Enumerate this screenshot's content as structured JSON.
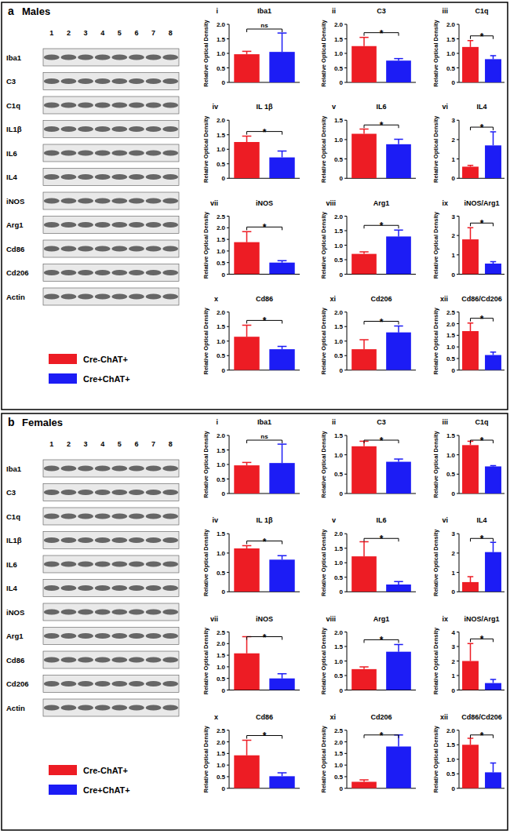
{
  "figure": {
    "panels": [
      {
        "letter": "a",
        "title": "Males",
        "lanes": [
          1,
          2,
          3,
          4,
          5,
          6,
          7,
          8
        ],
        "blot_rows": [
          "Iba1",
          "C3",
          "C1q",
          "IL1β",
          "IL6",
          "IL4",
          "iNOS",
          "Arg1",
          "Cd86",
          "Cd206",
          "Actin"
        ],
        "legend": [
          {
            "name": "Cre-ChAT+",
            "color": "#ed1c24"
          },
          {
            "name": "Cre+ChAT+",
            "color": "#1c1cf5"
          }
        ]
      },
      {
        "letter": "b",
        "title": "Females",
        "lanes": [
          1,
          2,
          3,
          4,
          5,
          6,
          7,
          8
        ],
        "blot_rows": [
          "Iba1",
          "C3",
          "C1q",
          "IL1β",
          "IL6",
          "IL4",
          "iNOS",
          "Arg1",
          "Cd86",
          "Cd206",
          "Actin"
        ],
        "legend": [
          {
            "name": "Cre-ChAT+",
            "color": "#ed1c24"
          },
          {
            "name": "Cre+ChAT+",
            "color": "#1c1cf5"
          }
        ]
      }
    ]
  },
  "chart_data": [
    {
      "type": "bar",
      "label": "i",
      "title": "Iba1",
      "y_label": "Relative Optical Density",
      "categories": [
        null,
        null
      ],
      "values": [
        0.97,
        1.05
      ],
      "errors": [
        0.1,
        0.65
      ],
      "colors": [
        "#ed1c24",
        "#1c1cf5"
      ],
      "ylim": [
        0,
        2
      ],
      "yticks": [
        0,
        0.5,
        {
          "value": 1,
          "label": "1.0"
        },
        1.5,
        {
          "value": 2,
          "label": "2.0"
        }
      ],
      "annotation": "ns"
    },
    {
      "type": "bar",
      "label": "ii",
      "title": "C3",
      "y_label": "Relative Optical Density",
      "categories": [
        null,
        null
      ],
      "values": [
        1.25,
        0.75
      ],
      "errors": [
        0.3,
        0.07
      ],
      "colors": [
        "#ed1c24",
        "#1c1cf5"
      ],
      "ylim": [
        0,
        2
      ],
      "yticks": [
        0,
        0.5,
        {
          "value": 1,
          "label": "1.0"
        },
        1.5,
        {
          "value": 2,
          "label": "2.0"
        }
      ],
      "annotation": "*"
    },
    {
      "type": "bar",
      "label": "iii",
      "title": "C1q",
      "y_label": "Relative Optical Density",
      "categories": [
        null,
        null
      ],
      "values": [
        1.22,
        0.8
      ],
      "errors": [
        0.22,
        0.12
      ],
      "colors": [
        "#ed1c24",
        "#1c1cf5"
      ],
      "ylim": [
        0,
        2
      ],
      "yticks": [
        0,
        0.5,
        {
          "value": 1,
          "label": "1.0"
        },
        1.5,
        {
          "value": 2,
          "label": "2.0"
        }
      ],
      "annotation": "*"
    },
    {
      "type": "bar",
      "label": "iv",
      "title": "IL 1β",
      "y_label": "Relative Optical Density",
      "categories": [
        null,
        null
      ],
      "values": [
        1.25,
        0.72
      ],
      "errors": [
        0.2,
        0.22
      ],
      "colors": [
        "#ed1c24",
        "#1c1cf5"
      ],
      "ylim": [
        0,
        2
      ],
      "yticks": [
        0,
        0.5,
        {
          "value": 1,
          "label": "1.0"
        },
        1.5,
        {
          "value": 2,
          "label": "2.0"
        }
      ],
      "annotation": "*"
    },
    {
      "type": "bar",
      "label": "v",
      "title": "IL6",
      "y_label": "Relative Optical Density",
      "categories": [
        null,
        null
      ],
      "values": [
        1.15,
        0.88
      ],
      "errors": [
        0.12,
        0.13
      ],
      "colors": [
        "#ed1c24",
        "#1c1cf5"
      ],
      "ylim": [
        0,
        1.5
      ],
      "yticks": [
        0,
        0.5,
        {
          "value": 1,
          "label": "1.0"
        },
        1.5
      ],
      "annotation": "*"
    },
    {
      "type": "bar",
      "label": "vi",
      "title": "IL4",
      "y_label": "Relative Optical Density",
      "categories": [
        null,
        null
      ],
      "values": [
        0.6,
        1.7
      ],
      "errors": [
        0.07,
        0.7
      ],
      "colors": [
        "#ed1c24",
        "#1c1cf5"
      ],
      "ylim": [
        0,
        3
      ],
      "yticks": [
        0,
        1,
        2,
        3
      ],
      "annotation": "*"
    },
    {
      "type": "bar",
      "label": "vii",
      "title": "iNOS",
      "y_label": "Relative Optical Density",
      "categories": [
        null,
        null
      ],
      "values": [
        1.38,
        0.5
      ],
      "errors": [
        0.45,
        0.08
      ],
      "colors": [
        "#ed1c24",
        "#1c1cf5"
      ],
      "ylim": [
        0,
        2.5
      ],
      "yticks": [
        0,
        0.5,
        {
          "value": 1,
          "label": "1.0"
        },
        1.5,
        {
          "value": 2,
          "label": "2.0"
        },
        2.5
      ],
      "annotation": "*"
    },
    {
      "type": "bar",
      "label": "viii",
      "title": "Arg1",
      "y_label": "Relative Optical Density",
      "categories": [
        null,
        null
      ],
      "values": [
        0.7,
        1.3
      ],
      "errors": [
        0.07,
        0.22
      ],
      "colors": [
        "#ed1c24",
        "#1c1cf5"
      ],
      "ylim": [
        0,
        2
      ],
      "yticks": [
        0,
        0.5,
        {
          "value": 1,
          "label": "1.0"
        },
        1.5,
        {
          "value": 2,
          "label": "2.0"
        }
      ],
      "annotation": "*"
    },
    {
      "type": "bar",
      "label": "ix",
      "title": "iNOS/Arg1",
      "y_label": "Relative Optical Density",
      "categories": [
        null,
        null
      ],
      "values": [
        1.8,
        0.55
      ],
      "errors": [
        0.6,
        0.1
      ],
      "colors": [
        "#ed1c24",
        "#1c1cf5"
      ],
      "ylim": [
        0,
        3
      ],
      "yticks": [
        0,
        1,
        2,
        3
      ],
      "annotation": "*"
    },
    {
      "type": "bar",
      "label": "x",
      "title": "Cd86",
      "y_label": "Relative Optical Density",
      "categories": [
        null,
        null
      ],
      "values": [
        1.15,
        0.72
      ],
      "errors": [
        0.4,
        0.1
      ],
      "colors": [
        "#ed1c24",
        "#1c1cf5"
      ],
      "ylim": [
        0,
        2
      ],
      "yticks": [
        0,
        0.5,
        {
          "value": 1,
          "label": "1.0"
        },
        1.5,
        {
          "value": 2,
          "label": "2.0"
        }
      ],
      "annotation": "*"
    },
    {
      "type": "bar",
      "label": "xi",
      "title": "Cd206",
      "y_label": "Relative Optical Density",
      "categories": [
        null,
        null
      ],
      "values": [
        0.72,
        1.3
      ],
      "errors": [
        0.33,
        0.22
      ],
      "colors": [
        "#ed1c24",
        "#1c1cf5"
      ],
      "ylim": [
        0,
        2
      ],
      "yticks": [
        0,
        0.5,
        {
          "value": 1,
          "label": "1.0"
        },
        1.5,
        {
          "value": 2,
          "label": "2.0"
        }
      ],
      "annotation": "*"
    },
    {
      "type": "bar",
      "label": "xii",
      "title": "Cd86/Cd206",
      "y_label": "Relative Optical Density",
      "categories": [
        null,
        null
      ],
      "values": [
        1.68,
        0.65
      ],
      "errors": [
        0.35,
        0.13
      ],
      "colors": [
        "#ed1c24",
        "#1c1cf5"
      ],
      "ylim": [
        0,
        2.5
      ],
      "yticks": [
        0,
        0.5,
        {
          "value": 1,
          "label": "1.0"
        },
        1.5,
        {
          "value": 2,
          "label": "2.0"
        },
        2.5
      ],
      "annotation": "*"
    },
    {
      "type": "bar",
      "label": "i",
      "title": "Iba1",
      "y_label": "Relative Optical Density",
      "categories": [
        null,
        null
      ],
      "values": [
        0.97,
        1.05
      ],
      "errors": [
        0.1,
        0.65
      ],
      "colors": [
        "#ed1c24",
        "#1c1cf5"
      ],
      "ylim": [
        0,
        2
      ],
      "yticks": [
        0,
        0.5,
        {
          "value": 1,
          "label": "1.0"
        },
        1.5,
        {
          "value": 2,
          "label": "2.0"
        }
      ],
      "annotation": "ns"
    },
    {
      "type": "bar",
      "label": "ii",
      "title": "C3",
      "y_label": "Relative Optical Density",
      "categories": [
        null,
        null
      ],
      "values": [
        1.22,
        0.82
      ],
      "errors": [
        0.13,
        0.07
      ],
      "colors": [
        "#ed1c24",
        "#1c1cf5"
      ],
      "ylim": [
        0,
        1.5
      ],
      "yticks": [
        0,
        0.5,
        {
          "value": 1,
          "label": "1.0"
        },
        1.5
      ],
      "annotation": "*"
    },
    {
      "type": "bar",
      "label": "iii",
      "title": "C1q",
      "y_label": "Relative Optical Density",
      "categories": [
        null,
        null
      ],
      "values": [
        1.25,
        0.7
      ],
      "errors": [
        0.1,
        0.02
      ],
      "colors": [
        "#ed1c24",
        "#1c1cf5"
      ],
      "ylim": [
        0,
        1.5
      ],
      "yticks": [
        0,
        0.5,
        {
          "value": 1,
          "label": "1.0"
        },
        1.5
      ],
      "annotation": "*"
    },
    {
      "type": "bar",
      "label": "iv",
      "title": "IL 1β",
      "y_label": "Relative Optical Density",
      "categories": [
        null,
        null
      ],
      "values": [
        1.12,
        0.83
      ],
      "errors": [
        0.07,
        0.1
      ],
      "colors": [
        "#ed1c24",
        "#1c1cf5"
      ],
      "ylim": [
        0,
        1.5
      ],
      "yticks": [
        0,
        0.5,
        {
          "value": 1,
          "label": "1.0"
        },
        1.5
      ],
      "annotation": "*"
    },
    {
      "type": "bar",
      "label": "v",
      "title": "IL6",
      "y_label": "Relative Optical Density",
      "categories": [
        null,
        null
      ],
      "values": [
        1.22,
        0.25
      ],
      "errors": [
        0.5,
        0.1
      ],
      "colors": [
        "#ed1c24",
        "#1c1cf5"
      ],
      "ylim": [
        0,
        2
      ],
      "yticks": [
        0,
        0.5,
        {
          "value": 1,
          "label": "1.0"
        },
        1.5,
        {
          "value": 2,
          "label": "2.0"
        }
      ],
      "annotation": "*"
    },
    {
      "type": "bar",
      "label": "vi",
      "title": "IL4",
      "y_label": "Relative Optical Density",
      "categories": [
        null,
        null
      ],
      "values": [
        0.5,
        2.05
      ],
      "errors": [
        0.28,
        0.5
      ],
      "colors": [
        "#ed1c24",
        "#1c1cf5"
      ],
      "ylim": [
        0,
        3
      ],
      "yticks": [
        0,
        1,
        2,
        3
      ],
      "annotation": "*"
    },
    {
      "type": "bar",
      "label": "vii",
      "title": "iNOS",
      "y_label": "Relative Optical Density",
      "categories": [
        null,
        null
      ],
      "values": [
        1.58,
        0.5
      ],
      "errors": [
        0.72,
        0.2
      ],
      "colors": [
        "#ed1c24",
        "#1c1cf5"
      ],
      "ylim": [
        0,
        2.5
      ],
      "yticks": [
        0,
        0.5,
        {
          "value": 1,
          "label": "1.0"
        },
        1.5,
        {
          "value": 2,
          "label": "2.0"
        },
        2.5
      ],
      "annotation": "*"
    },
    {
      "type": "bar",
      "label": "viii",
      "title": "Arg1",
      "y_label": "Relative Optical Density",
      "categories": [
        null,
        null
      ],
      "values": [
        0.72,
        1.32
      ],
      "errors": [
        0.08,
        0.25
      ],
      "colors": [
        "#ed1c24",
        "#1c1cf5"
      ],
      "ylim": [
        0,
        2
      ],
      "yticks": [
        0,
        0.5,
        {
          "value": 1,
          "label": "1.0"
        },
        1.5,
        {
          "value": 2,
          "label": "2.0"
        }
      ],
      "annotation": "*"
    },
    {
      "type": "bar",
      "label": "ix",
      "title": "iNOS/Arg1",
      "y_label": "Relative Optical Density",
      "categories": [
        null,
        null
      ],
      "values": [
        2.0,
        0.48
      ],
      "errors": [
        1.2,
        0.25
      ],
      "colors": [
        "#ed1c24",
        "#1c1cf5"
      ],
      "ylim": [
        0,
        4
      ],
      "yticks": [
        0,
        1,
        2,
        3,
        4
      ],
      "annotation": "*"
    },
    {
      "type": "bar",
      "label": "x",
      "title": "Cd86",
      "y_label": "Relative Optical Density",
      "categories": [
        null,
        null
      ],
      "values": [
        1.42,
        0.52
      ],
      "errors": [
        0.65,
        0.15
      ],
      "colors": [
        "#ed1c24",
        "#1c1cf5"
      ],
      "ylim": [
        0,
        2.5
      ],
      "yticks": [
        0,
        0.5,
        {
          "value": 1,
          "label": "1.0"
        },
        1.5,
        {
          "value": 2,
          "label": "2.0"
        },
        2.5
      ],
      "annotation": "*"
    },
    {
      "type": "bar",
      "label": "xi",
      "title": "Cd206",
      "y_label": "Relative Optical Density",
      "categories": [
        null,
        null
      ],
      "values": [
        0.28,
        1.8
      ],
      "errors": [
        0.08,
        0.5
      ],
      "colors": [
        "#ed1c24",
        "#1c1cf5"
      ],
      "ylim": [
        0,
        2.5
      ],
      "yticks": [
        0,
        0.5,
        {
          "value": 1,
          "label": "1.0"
        },
        1.5,
        {
          "value": 2,
          "label": "2.0"
        },
        2.5
      ],
      "annotation": "*"
    },
    {
      "type": "bar",
      "label": "xii",
      "title": "Cd86/Cd206",
      "y_label": "Relative Optical Density",
      "categories": [
        null,
        null
      ],
      "values": [
        1.5,
        0.55
      ],
      "errors": [
        0.22,
        0.32
      ],
      "colors": [
        "#ed1c24",
        "#1c1cf5"
      ],
      "ylim": [
        0,
        2
      ],
      "yticks": [
        0,
        0.5,
        {
          "value": 1,
          "label": "1.0"
        },
        1.5,
        {
          "value": 2,
          "label": "2.0"
        }
      ],
      "annotation": "*"
    }
  ]
}
